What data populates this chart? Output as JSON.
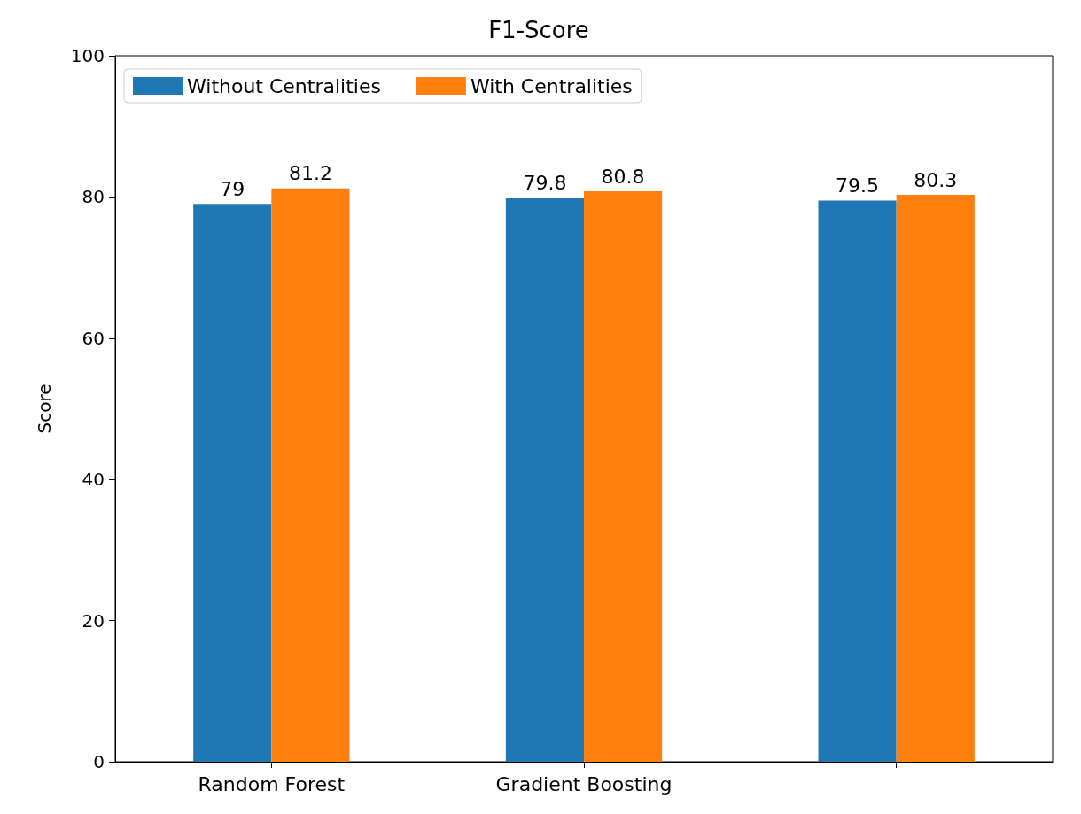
{
  "chart_data": {
    "type": "bar",
    "title": "F1-Score",
    "ylabel": "Score",
    "categories": [
      "Random Forest",
      "Gradient Boosting",
      null
    ],
    "series": [
      {
        "name": "Without Centralities",
        "color": "#1f77b4",
        "values": [
          79,
          79.8,
          79.5
        ]
      },
      {
        "name": "With Centralities",
        "color": "#ff7f0e",
        "values": [
          81.2,
          80.8,
          80.3
        ]
      }
    ],
    "ylim": [
      0,
      100
    ],
    "yticks": [
      0,
      20,
      40,
      60,
      80,
      100
    ],
    "data_labels": true,
    "legend": "top left",
    "grid": false
  }
}
